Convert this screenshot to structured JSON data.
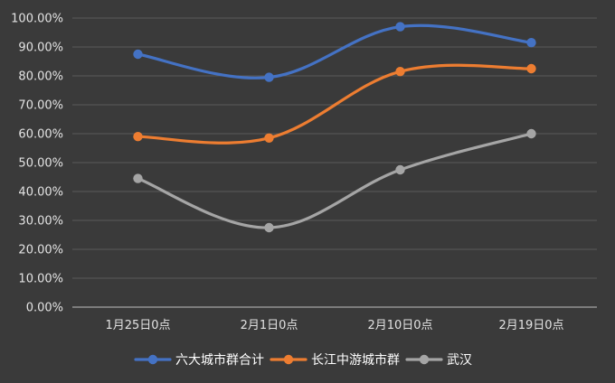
{
  "chart_data": {
    "type": "line",
    "title": "",
    "xlabel": "",
    "ylabel": "",
    "categories": [
      "1月25日0点",
      "2月1日0点",
      "2月10日0点",
      "2月19日0点"
    ],
    "ylim": [
      0,
      100
    ],
    "yticks": [
      0,
      10,
      20,
      30,
      40,
      50,
      60,
      70,
      80,
      90,
      100
    ],
    "ytick_labels": [
      "0.00%",
      "10.00%",
      "20.00%",
      "30.00%",
      "40.00%",
      "50.00%",
      "60.00%",
      "70.00%",
      "80.00%",
      "90.00%",
      "100.00%"
    ],
    "grid": true,
    "smooth": true,
    "legend_position": "bottom",
    "series": [
      {
        "name": "六大城市群合计",
        "values": [
          87.5,
          79.5,
          97,
          91.5
        ],
        "color": "#4472c4"
      },
      {
        "name": "长江中游城市群",
        "values": [
          59,
          58.5,
          81.5,
          82.5
        ],
        "color": "#ed7d31"
      },
      {
        "name": "武汉",
        "values": [
          44.5,
          27.5,
          47.5,
          60
        ],
        "color": "#a5a5a5"
      }
    ],
    "colors": {
      "background": "#3a3a3a",
      "gridline": "#595959",
      "axis": "#bfbfbf",
      "tick_text": "#e3e3e3",
      "legend_text": "#ffffff"
    }
  }
}
